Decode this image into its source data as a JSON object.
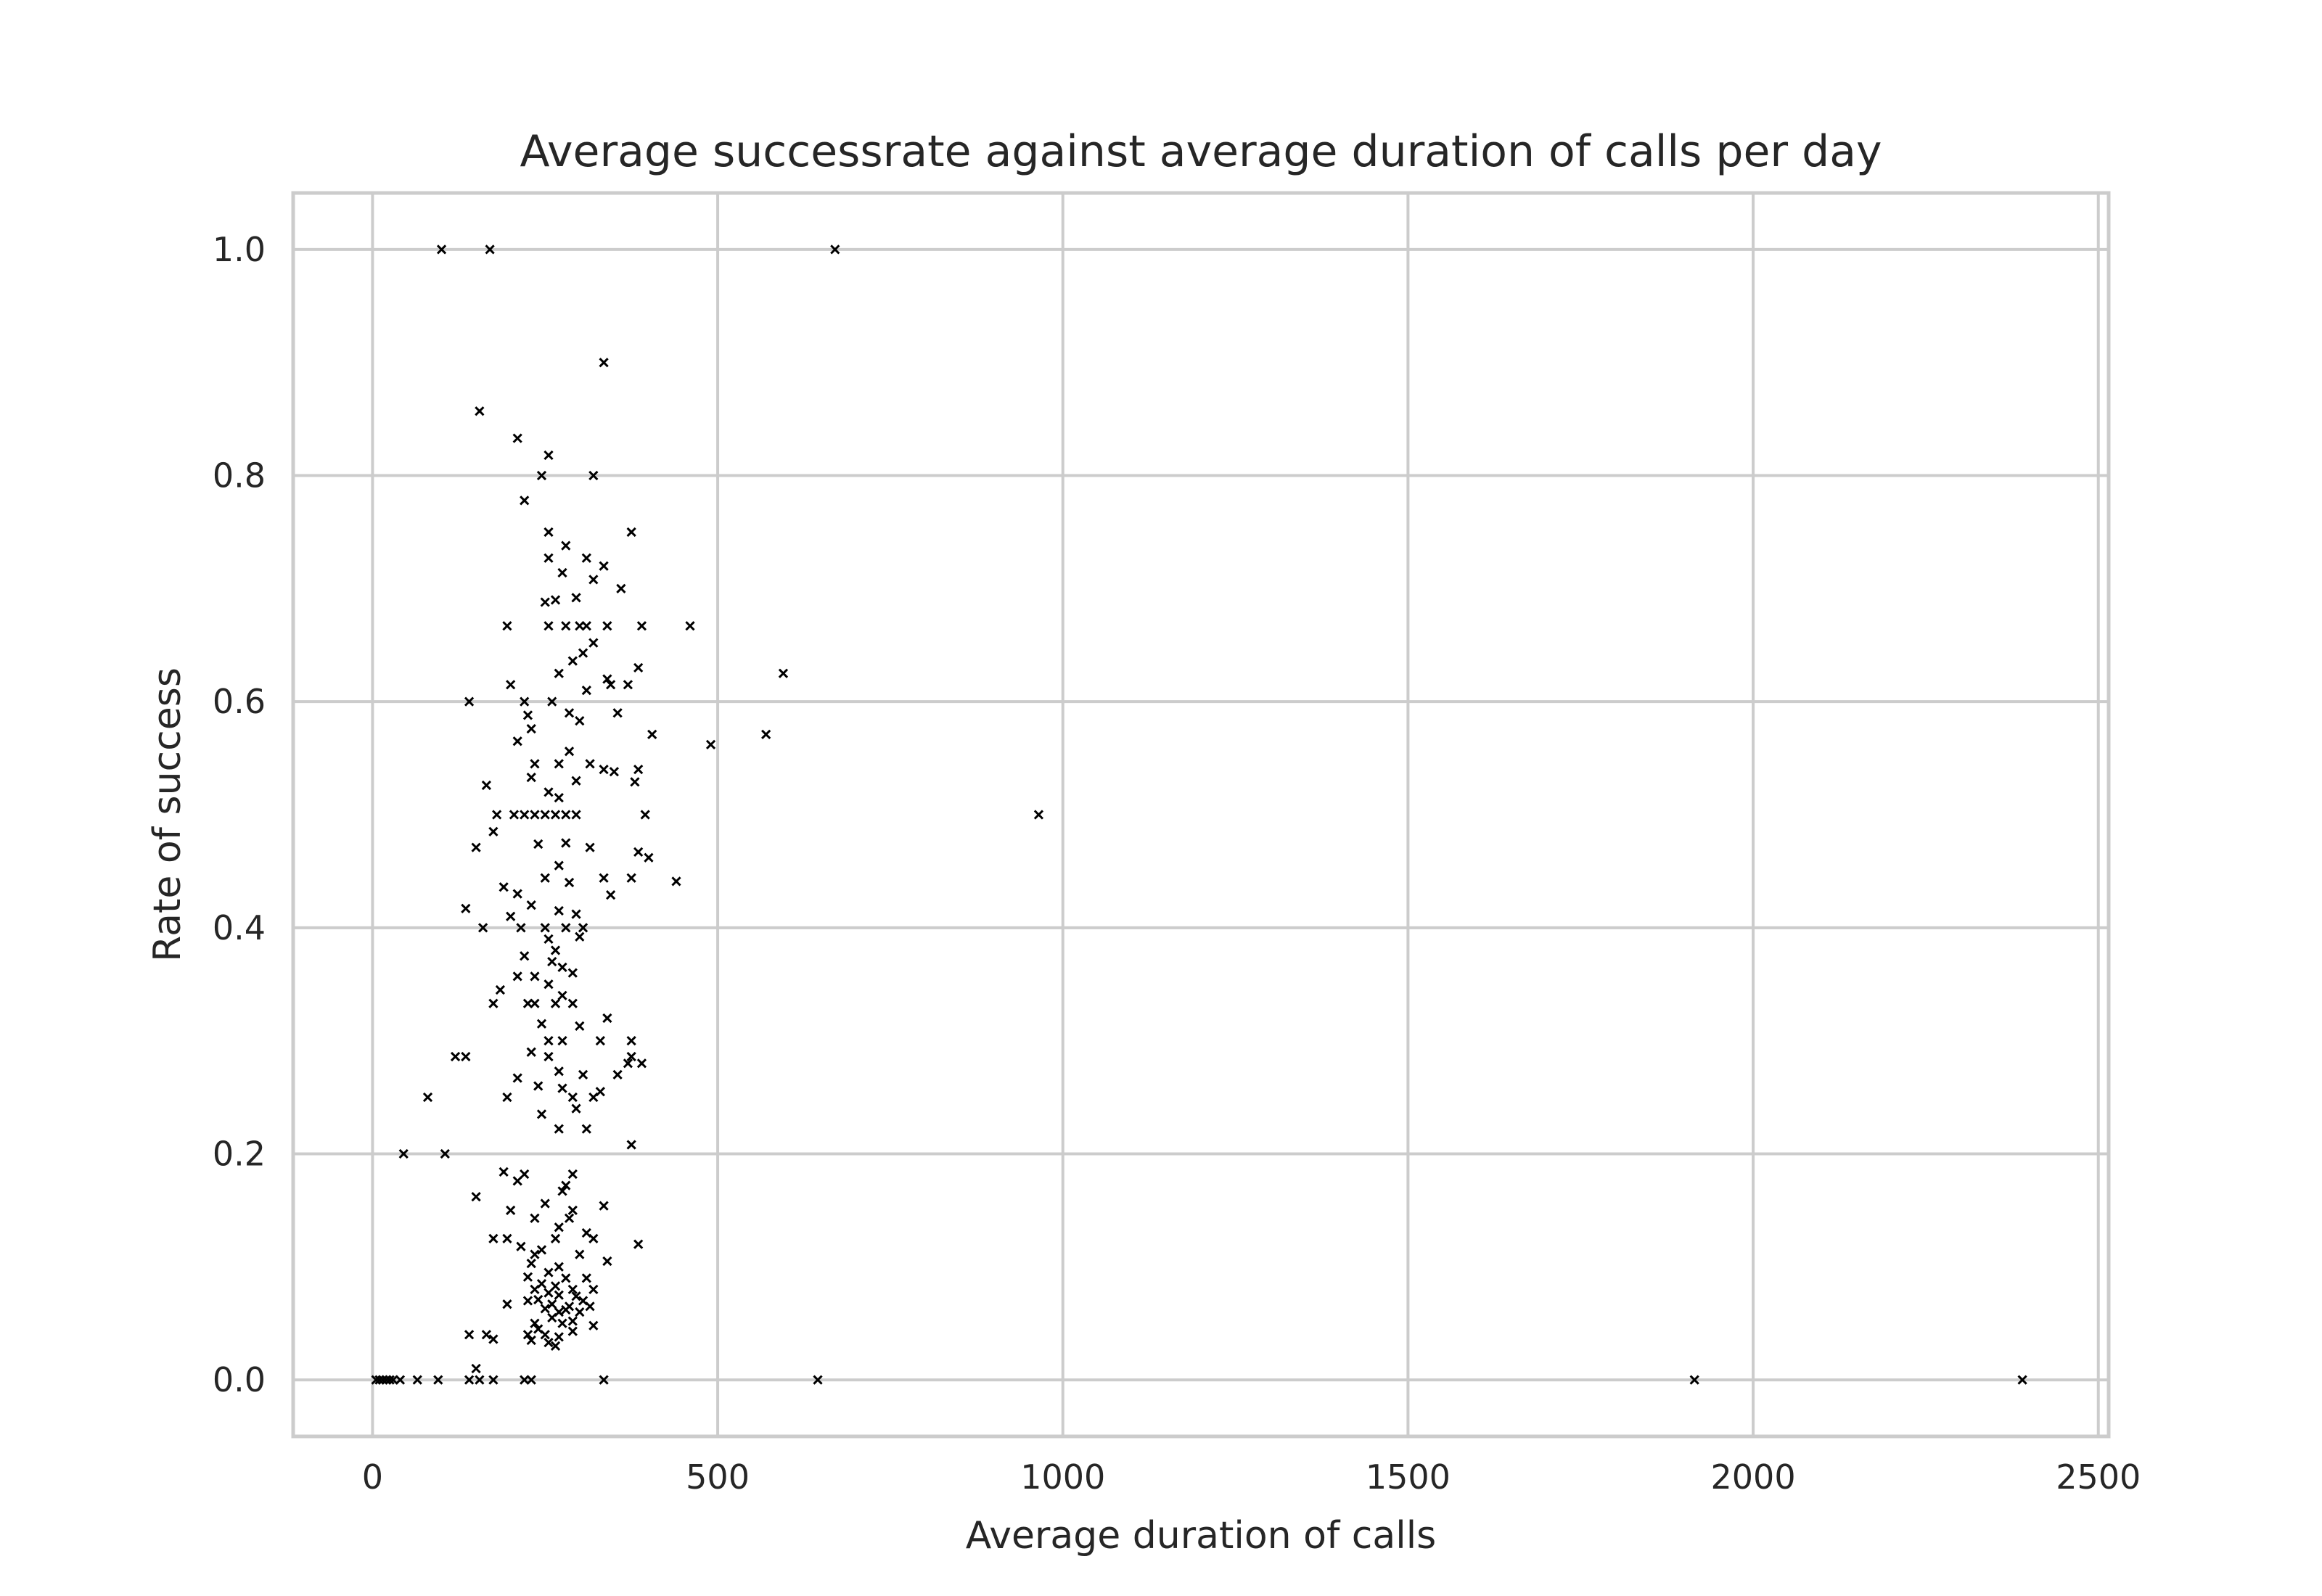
{
  "chart_data": {
    "type": "scatter",
    "title": "Average successrate against average duration of calls per day",
    "xlabel": "Average duration of calls",
    "ylabel": "Rate of success",
    "xlim": [
      -115,
      2515
    ],
    "ylim": [
      -0.05,
      1.05
    ],
    "xticks": [
      0,
      500,
      1000,
      1500,
      2000,
      2500
    ],
    "xtick_labels": [
      "0",
      "500",
      "1000",
      "1500",
      "2000",
      "2500"
    ],
    "yticks": [
      0.0,
      0.2,
      0.4,
      0.6,
      0.8,
      1.0
    ],
    "ytick_labels": [
      "0.0",
      "0.2",
      "0.4",
      "0.6",
      "0.8",
      "1.0"
    ],
    "grid": true,
    "marker": "x",
    "marker_color": "#000000",
    "points": [
      [
        100,
        1.0
      ],
      [
        170,
        1.0
      ],
      [
        670,
        1.0
      ],
      [
        335,
        0.9
      ],
      [
        155,
        0.857
      ],
      [
        210,
        0.833
      ],
      [
        255,
        0.818
      ],
      [
        245,
        0.8
      ],
      [
        320,
        0.8
      ],
      [
        220,
        0.778
      ],
      [
        255,
        0.75
      ],
      [
        375,
        0.75
      ],
      [
        280,
        0.738
      ],
      [
        255,
        0.727
      ],
      [
        310,
        0.727
      ],
      [
        275,
        0.714
      ],
      [
        335,
        0.72
      ],
      [
        320,
        0.708
      ],
      [
        360,
        0.7
      ],
      [
        295,
        0.692
      ],
      [
        250,
        0.688
      ],
      [
        265,
        0.69
      ],
      [
        195,
        0.667
      ],
      [
        255,
        0.667
      ],
      [
        280,
        0.667
      ],
      [
        300,
        0.667
      ],
      [
        310,
        0.667
      ],
      [
        340,
        0.667
      ],
      [
        390,
        0.667
      ],
      [
        460,
        0.667
      ],
      [
        320,
        0.652
      ],
      [
        305,
        0.643
      ],
      [
        290,
        0.636
      ],
      [
        385,
        0.63
      ],
      [
        270,
        0.625
      ],
      [
        595,
        0.625
      ],
      [
        340,
        0.62
      ],
      [
        370,
        0.615
      ],
      [
        345,
        0.615
      ],
      [
        200,
        0.615
      ],
      [
        310,
        0.61
      ],
      [
        140,
        0.6
      ],
      [
        220,
        0.6
      ],
      [
        260,
        0.6
      ],
      [
        285,
        0.59
      ],
      [
        355,
        0.59
      ],
      [
        225,
        0.588
      ],
      [
        300,
        0.583
      ],
      [
        230,
        0.576
      ],
      [
        405,
        0.571
      ],
      [
        570,
        0.571
      ],
      [
        210,
        0.565
      ],
      [
        490,
        0.562
      ],
      [
        285,
        0.556
      ],
      [
        315,
        0.545
      ],
      [
        235,
        0.545
      ],
      [
        270,
        0.545
      ],
      [
        335,
        0.54
      ],
      [
        385,
        0.54
      ],
      [
        350,
        0.538
      ],
      [
        230,
        0.533
      ],
      [
        380,
        0.529
      ],
      [
        295,
        0.53
      ],
      [
        255,
        0.52
      ],
      [
        165,
        0.526
      ],
      [
        270,
        0.515
      ],
      [
        180,
        0.5
      ],
      [
        205,
        0.5
      ],
      [
        220,
        0.5
      ],
      [
        235,
        0.5
      ],
      [
        250,
        0.5
      ],
      [
        265,
        0.5
      ],
      [
        280,
        0.5
      ],
      [
        295,
        0.5
      ],
      [
        395,
        0.5
      ],
      [
        965,
        0.5
      ],
      [
        175,
        0.485
      ],
      [
        150,
        0.471
      ],
      [
        240,
        0.474
      ],
      [
        280,
        0.475
      ],
      [
        315,
        0.471
      ],
      [
        385,
        0.467
      ],
      [
        400,
        0.462
      ],
      [
        270,
        0.455
      ],
      [
        335,
        0.444
      ],
      [
        375,
        0.444
      ],
      [
        250,
        0.444
      ],
      [
        285,
        0.44
      ],
      [
        440,
        0.441
      ],
      [
        210,
        0.43
      ],
      [
        345,
        0.429
      ],
      [
        190,
        0.436
      ],
      [
        230,
        0.42
      ],
      [
        270,
        0.415
      ],
      [
        135,
        0.417
      ],
      [
        295,
        0.412
      ],
      [
        200,
        0.41
      ],
      [
        160,
        0.4
      ],
      [
        215,
        0.4
      ],
      [
        250,
        0.4
      ],
      [
        280,
        0.4
      ],
      [
        305,
        0.4
      ],
      [
        255,
        0.39
      ],
      [
        265,
        0.38
      ],
      [
        300,
        0.392
      ],
      [
        220,
        0.375
      ],
      [
        260,
        0.37
      ],
      [
        275,
        0.365
      ],
      [
        290,
        0.36
      ],
      [
        210,
        0.357
      ],
      [
        235,
        0.357
      ],
      [
        185,
        0.345
      ],
      [
        255,
        0.35
      ],
      [
        275,
        0.34
      ],
      [
        175,
        0.333
      ],
      [
        225,
        0.333
      ],
      [
        235,
        0.333
      ],
      [
        265,
        0.333
      ],
      [
        290,
        0.333
      ],
      [
        340,
        0.32
      ],
      [
        245,
        0.315
      ],
      [
        300,
        0.313
      ],
      [
        275,
        0.3
      ],
      [
        330,
        0.3
      ],
      [
        255,
        0.3
      ],
      [
        375,
        0.3
      ],
      [
        120,
        0.286
      ],
      [
        135,
        0.286
      ],
      [
        230,
        0.29
      ],
      [
        255,
        0.286
      ],
      [
        375,
        0.286
      ],
      [
        390,
        0.28
      ],
      [
        370,
        0.28
      ],
      [
        270,
        0.273
      ],
      [
        305,
        0.27
      ],
      [
        355,
        0.27
      ],
      [
        210,
        0.267
      ],
      [
        240,
        0.26
      ],
      [
        275,
        0.258
      ],
      [
        330,
        0.255
      ],
      [
        80,
        0.25
      ],
      [
        195,
        0.25
      ],
      [
        290,
        0.25
      ],
      [
        320,
        0.25
      ],
      [
        295,
        0.24
      ],
      [
        245,
        0.235
      ],
      [
        270,
        0.222
      ],
      [
        310,
        0.222
      ],
      [
        375,
        0.208
      ],
      [
        45,
        0.2
      ],
      [
        105,
        0.2
      ],
      [
        190,
        0.184
      ],
      [
        220,
        0.182
      ],
      [
        290,
        0.182
      ],
      [
        280,
        0.172
      ],
      [
        210,
        0.176
      ],
      [
        150,
        0.162
      ],
      [
        275,
        0.167
      ],
      [
        250,
        0.156
      ],
      [
        335,
        0.154
      ],
      [
        200,
        0.15
      ],
      [
        290,
        0.15
      ],
      [
        285,
        0.143
      ],
      [
        235,
        0.143
      ],
      [
        270,
        0.135
      ],
      [
        310,
        0.13
      ],
      [
        175,
        0.125
      ],
      [
        195,
        0.125
      ],
      [
        265,
        0.125
      ],
      [
        320,
        0.125
      ],
      [
        385,
        0.12
      ],
      [
        215,
        0.118
      ],
      [
        245,
        0.115
      ],
      [
        235,
        0.111
      ],
      [
        300,
        0.111
      ],
      [
        230,
        0.103
      ],
      [
        340,
        0.105
      ],
      [
        270,
        0.1
      ],
      [
        255,
        0.095
      ],
      [
        225,
        0.091
      ],
      [
        280,
        0.09
      ],
      [
        310,
        0.09
      ],
      [
        245,
        0.085
      ],
      [
        265,
        0.083
      ],
      [
        235,
        0.08
      ],
      [
        290,
        0.08
      ],
      [
        320,
        0.08
      ],
      [
        255,
        0.077
      ],
      [
        270,
        0.075
      ],
      [
        295,
        0.074
      ],
      [
        305,
        0.07
      ],
      [
        240,
        0.071
      ],
      [
        225,
        0.07
      ],
      [
        195,
        0.067
      ],
      [
        260,
        0.067
      ],
      [
        285,
        0.065
      ],
      [
        280,
        0.062
      ],
      [
        315,
        0.065
      ],
      [
        250,
        0.063
      ],
      [
        270,
        0.06
      ],
      [
        300,
        0.06
      ],
      [
        260,
        0.055
      ],
      [
        235,
        0.05
      ],
      [
        275,
        0.05
      ],
      [
        290,
        0.052
      ],
      [
        320,
        0.048
      ],
      [
        240,
        0.045
      ],
      [
        225,
        0.04
      ],
      [
        250,
        0.04
      ],
      [
        270,
        0.038
      ],
      [
        290,
        0.043
      ],
      [
        140,
        0.04
      ],
      [
        165,
        0.04
      ],
      [
        175,
        0.036
      ],
      [
        230,
        0.035
      ],
      [
        255,
        0.033
      ],
      [
        265,
        0.03
      ],
      [
        150,
        0.01
      ],
      [
        5,
        0.0
      ],
      [
        10,
        0.0
      ],
      [
        15,
        0.0
      ],
      [
        20,
        0.0
      ],
      [
        25,
        0.0
      ],
      [
        30,
        0.0
      ],
      [
        40,
        0.0
      ],
      [
        65,
        0.0
      ],
      [
        95,
        0.0
      ],
      [
        140,
        0.0
      ],
      [
        155,
        0.0
      ],
      [
        175,
        0.0
      ],
      [
        220,
        0.0
      ],
      [
        230,
        0.0
      ],
      [
        335,
        0.0
      ],
      [
        645,
        0.0
      ],
      [
        1915,
        0.0
      ],
      [
        2390,
        0.0
      ]
    ]
  }
}
